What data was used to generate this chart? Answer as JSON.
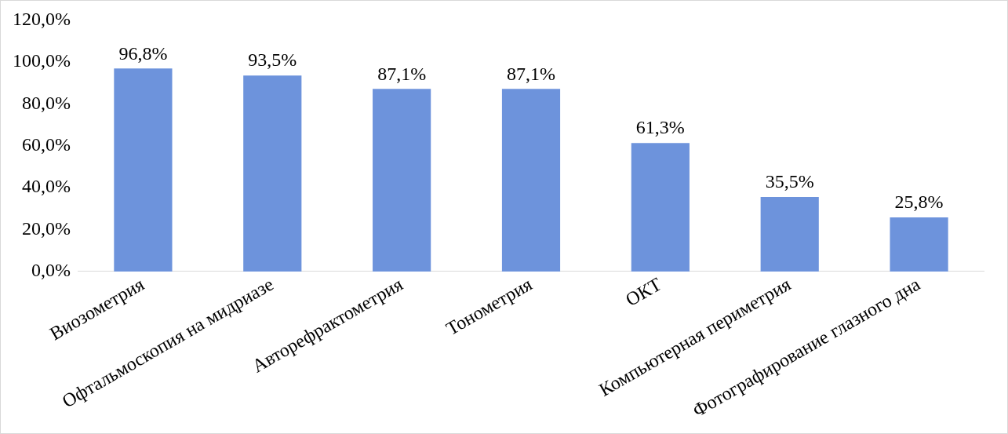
{
  "chart_data": {
    "type": "bar",
    "categories": [
      "Виозометрия",
      "Офтальмоскопия на мидриазе",
      "Авторефрактометрия",
      "Тонометрия",
      "ОКТ",
      "Компьютерная периметрия",
      "Фотографирование глазного дна"
    ],
    "values": [
      96.8,
      93.5,
      87.1,
      87.1,
      61.3,
      35.5,
      25.8
    ],
    "value_labels": [
      "96,8%",
      "93,5%",
      "87,1%",
      "87,1%",
      "61,3%",
      "35,5%",
      "25,8%"
    ],
    "color": "#6d93dc",
    "ylim": [
      0,
      120
    ],
    "yticks": [
      {
        "value": 0,
        "label": "0,0%"
      },
      {
        "value": 20,
        "label": "20,0%"
      },
      {
        "value": 40,
        "label": "40,0%"
      },
      {
        "value": 60,
        "label": "60,0%"
      },
      {
        "value": 80,
        "label": "80,0%"
      },
      {
        "value": 100,
        "label": "100,0%"
      },
      {
        "value": 120,
        "label": "120,0%"
      }
    ],
    "grid": false,
    "legend": false
  }
}
